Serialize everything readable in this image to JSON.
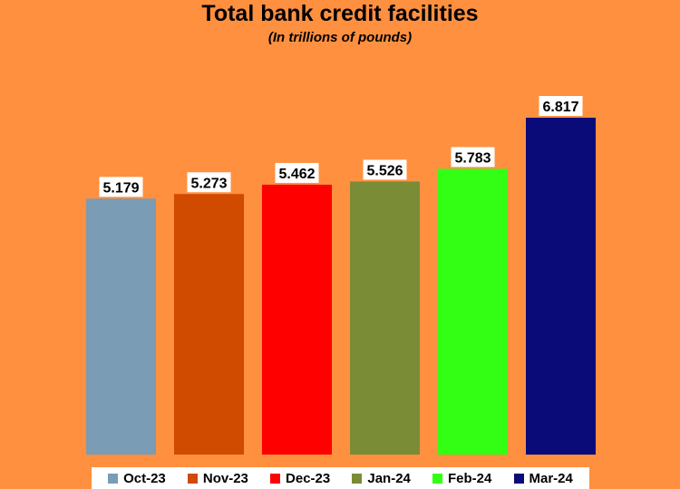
{
  "chart_data": {
    "type": "bar",
    "title": "Total bank credit facilities",
    "subtitle": "(In trillions of pounds)",
    "categories": [
      "Oct-23",
      "Nov-23",
      "Dec-23",
      "Jan-24",
      "Feb-24",
      "Mar-24"
    ],
    "values": [
      5.179,
      5.273,
      5.462,
      5.526,
      5.783,
      6.817
    ],
    "value_labels": [
      "5.179",
      "5.273",
      "5.462",
      "5.526",
      "5.783",
      "6.817"
    ],
    "colors": [
      "#7A9CB4",
      "#D04A00",
      "#FF0000",
      "#7A8C36",
      "#33FF14",
      "#0A0A78"
    ],
    "legend_position": "bottom",
    "grid": false,
    "y_axis_visible": false
  }
}
